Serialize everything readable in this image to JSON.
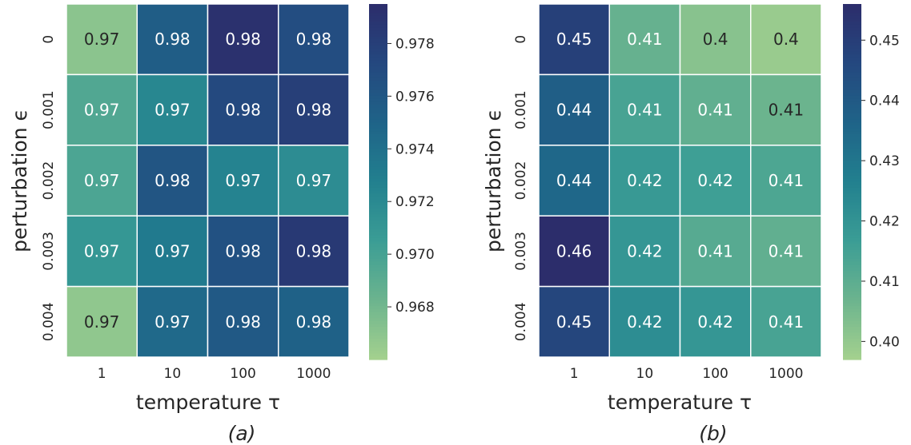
{
  "chart_data": [
    {
      "type": "heatmap",
      "caption": "(a)",
      "xlabel": "temperature τ",
      "ylabel": "perturbation ϵ",
      "x_categories": [
        "1",
        "10",
        "100",
        "1000"
      ],
      "y_categories": [
        "0",
        "0.001",
        "0.002",
        "0.003",
        "0.004"
      ],
      "values": [
        [
          0.967,
          0.9755,
          0.9792,
          0.9768
        ],
        [
          0.9695,
          0.9722,
          0.9772,
          0.978
        ],
        [
          0.9697,
          0.9762,
          0.9725,
          0.9718
        ],
        [
          0.971,
          0.9732,
          0.9765,
          0.9785
        ],
        [
          0.9668,
          0.9745,
          0.9758,
          0.9752
        ]
      ],
      "cell_labels": [
        [
          "0.97",
          "0.98",
          "0.98",
          "0.98"
        ],
        [
          "0.97",
          "0.97",
          "0.98",
          "0.98"
        ],
        [
          "0.97",
          "0.98",
          "0.97",
          "0.97"
        ],
        [
          "0.97",
          "0.97",
          "0.98",
          "0.98"
        ],
        [
          "0.97",
          "0.97",
          "0.98",
          "0.98"
        ]
      ],
      "colorbar": {
        "range": [
          0.966,
          0.9795
        ],
        "ticks": [
          "0.968",
          "0.970",
          "0.972",
          "0.974",
          "0.976",
          "0.978"
        ],
        "tick_values": [
          0.968,
          0.97,
          0.972,
          0.974,
          0.976,
          0.978
        ]
      }
    },
    {
      "type": "heatmap",
      "caption": "(b)",
      "xlabel": "temperature τ",
      "ylabel": "perturbation ϵ",
      "x_categories": [
        "1",
        "10",
        "100",
        "1000"
      ],
      "y_categories": [
        "0",
        "0.001",
        "0.002",
        "0.003",
        "0.004"
      ],
      "values": [
        [
          0.449,
          0.408,
          0.402,
          0.399
        ],
        [
          0.438,
          0.414,
          0.409,
          0.407
        ],
        [
          0.435,
          0.418,
          0.416,
          0.413
        ],
        [
          0.456,
          0.419,
          0.411,
          0.409
        ],
        [
          0.447,
          0.422,
          0.419,
          0.414
        ]
      ],
      "cell_labels": [
        [
          "0.45",
          "0.41",
          "0.4",
          "0.4"
        ],
        [
          "0.44",
          "0.41",
          "0.41",
          "0.41"
        ],
        [
          "0.44",
          "0.42",
          "0.42",
          "0.41"
        ],
        [
          "0.46",
          "0.42",
          "0.41",
          "0.41"
        ],
        [
          "0.45",
          "0.42",
          "0.42",
          "0.41"
        ]
      ],
      "colorbar": {
        "range": [
          0.397,
          0.456
        ],
        "ticks": [
          "0.40",
          "0.41",
          "0.42",
          "0.43",
          "0.44",
          "0.45"
        ],
        "tick_values": [
          0.4,
          0.41,
          0.42,
          0.43,
          0.44,
          0.45
        ]
      }
    }
  ],
  "colormap": [
    "#a4d18e",
    "#6cb48e",
    "#3b9d95",
    "#22808f",
    "#1f6388",
    "#24487f",
    "#2c2d6b"
  ],
  "text_dark": "#262626",
  "text_light": "#ffffff"
}
